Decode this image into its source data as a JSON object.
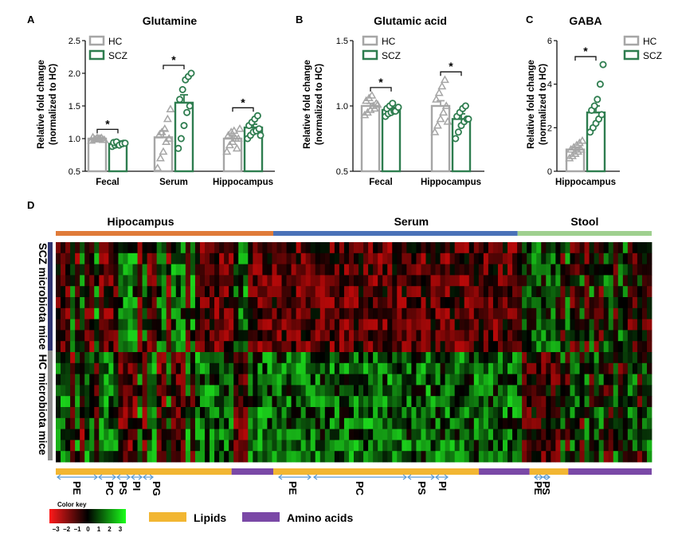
{
  "colors": {
    "hc": "#a6a6a6",
    "scz": "#2e7d4f",
    "hippocampus_bar": "#e07b39",
    "serum_bar": "#4a72b8",
    "stool_bar": "#9fd08f",
    "scz_side": "#2f3470",
    "hc_side": "#8f8f8f",
    "lipids": "#f2b632",
    "amino_acids": "#7a48a6",
    "arrow": "#5b9bd5"
  },
  "panel_labels": {
    "a": "A",
    "b": "B",
    "c": "C",
    "d": "D"
  },
  "legend": {
    "hc": "HC",
    "scz": "SCZ"
  },
  "ylabel_line1": "Relative fold change",
  "ylabel_line2": "(normalized to HC)",
  "chart_data": [
    {
      "type": "bar",
      "title": "Glutamine",
      "categories": [
        "Fecal",
        "Serum",
        "Hippocampus"
      ],
      "ylim": [
        0.5,
        2.5
      ],
      "yticks": [
        "0.5",
        "1.0",
        "1.5",
        "2.0",
        "2.5"
      ],
      "ytick_values": [
        0.5,
        1.0,
        1.5,
        2.0,
        2.5
      ],
      "series": [
        {
          "name": "HC",
          "values": [
            1.0,
            1.02,
            1.0
          ],
          "points": [
            [
              0.97,
              0.99,
              1.01,
              1.0,
              0.98,
              1.02,
              0.99,
              1.0,
              1.01,
              0.98
            ],
            [
              0.55,
              0.7,
              0.8,
              0.95,
              1.0,
              1.05,
              1.1,
              1.15,
              1.3,
              1.45
            ],
            [
              0.8,
              0.9,
              0.95,
              1.0,
              1.0,
              1.05,
              1.1,
              1.12,
              0.85,
              1.15
            ]
          ]
        },
        {
          "name": "SCZ",
          "values": [
            0.92,
            1.55,
            1.17
          ],
          "points": [
            [
              0.88,
              0.9,
              0.91,
              0.92,
              0.93,
              0.94,
              0.95,
              0.9,
              0.92,
              0.93
            ],
            [
              0.85,
              1.0,
              1.2,
              1.4,
              1.5,
              1.6,
              1.75,
              1.9,
              1.95,
              2.0
            ],
            [
              1.0,
              1.05,
              1.1,
              1.12,
              1.15,
              1.2,
              1.25,
              1.3,
              1.35,
              1.05
            ]
          ]
        }
      ],
      "errors": [
        [
          0.02,
          0.1,
          0.04
        ],
        [
          0.02,
          0.12,
          0.05
        ]
      ],
      "significance": [
        "*",
        "*",
        "*"
      ]
    },
    {
      "type": "bar",
      "title": "Glutamic acid",
      "categories": [
        "Fecal",
        "Hippocampus"
      ],
      "ylim": [
        0.5,
        1.5
      ],
      "yticks": [
        "0.5",
        "1.0",
        "1.5"
      ],
      "ytick_values": [
        0.5,
        1.0,
        1.5
      ],
      "series": [
        {
          "name": "HC",
          "values": [
            1.0,
            1.0
          ],
          "points": [
            [
              0.93,
              0.95,
              0.97,
              1.0,
              1.02,
              1.04,
              1.06,
              1.08,
              0.98,
              1.01
            ],
            [
              0.8,
              0.85,
              0.9,
              0.95,
              1.0,
              1.05,
              1.1,
              1.15,
              1.2,
              0.88
            ]
          ]
        },
        {
          "name": "SCZ",
          "values": [
            0.97,
            0.9
          ],
          "points": [
            [
              0.92,
              0.94,
              0.95,
              0.96,
              0.97,
              0.98,
              1.0,
              1.02,
              0.96,
              0.99
            ],
            [
              0.75,
              0.8,
              0.85,
              0.88,
              0.9,
              0.92,
              0.95,
              0.98,
              1.0,
              0.9
            ]
          ]
        }
      ],
      "errors": [
        [
          0.02,
          0.04
        ],
        [
          0.02,
          0.04
        ]
      ],
      "significance": [
        "*",
        "*"
      ]
    },
    {
      "type": "bar",
      "title": "GABA",
      "categories": [
        "Hippocampus"
      ],
      "ylim": [
        0,
        6
      ],
      "yticks": [
        "0",
        "2",
        "4",
        "6"
      ],
      "ytick_values": [
        0,
        2,
        4,
        6
      ],
      "series": [
        {
          "name": "HC",
          "values": [
            1.0
          ],
          "points": [
            [
              0.6,
              0.7,
              0.8,
              0.9,
              1.0,
              1.0,
              1.1,
              1.2,
              1.3,
              1.4
            ]
          ]
        },
        {
          "name": "SCZ",
          "values": [
            2.7
          ],
          "points": [
            [
              1.8,
              2.0,
              2.2,
              2.4,
              2.6,
              2.8,
              3.0,
              3.3,
              4.0,
              4.9
            ]
          ]
        }
      ],
      "errors": [
        [
          0.1
        ],
        [
          0.3
        ]
      ],
      "significance": [
        "*"
      ]
    },
    {
      "type": "heatmap",
      "column_groups": [
        {
          "label": "Hipocampus",
          "fraction": 0.365
        },
        {
          "label": "Serum",
          "fraction": 0.41
        },
        {
          "label": "Stool",
          "fraction": 0.225
        }
      ],
      "row_groups": [
        {
          "label": "SCZ microbiota mice",
          "rows": 10
        },
        {
          "label": "HC microbiota mice",
          "rows": 10
        }
      ],
      "columns": 124,
      "class_bar": [
        {
          "class": "Lipids",
          "fraction": 0.295
        },
        {
          "class": "Amino acids",
          "fraction": 0.07
        },
        {
          "class": "Lipids",
          "fraction": 0.345
        },
        {
          "class": "Amino acids",
          "fraction": 0.085
        },
        {
          "class": "Lipids",
          "fraction": 0.065
        },
        {
          "class": "Amino acids",
          "fraction": 0.14
        }
      ],
      "lipid_labels": [
        "PE",
        "PC",
        "PS",
        "PI",
        "PG",
        "PE",
        "PC",
        "PS",
        "PI",
        "PE",
        "PS"
      ],
      "color_key": {
        "title": "Color key",
        "ticks": [
          "−3",
          "−2",
          "−1",
          "0",
          "1",
          "2",
          "3"
        ]
      },
      "class_legend": [
        "Lipids",
        "Amino acids"
      ]
    }
  ]
}
